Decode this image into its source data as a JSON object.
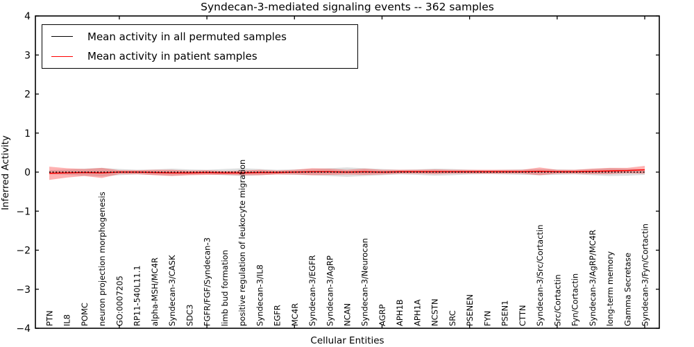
{
  "title": "Syndecan-3-mediated signaling events -- 362 samples",
  "axes": {
    "ylabel": "Inferred Activity",
    "xlabel": "Cellular Entities",
    "ytick_labels": [
      "4",
      "3",
      "2",
      "1",
      "0",
      "−1",
      "−2",
      "−3",
      "−4"
    ],
    "ylim": [
      -4,
      4
    ]
  },
  "legend": {
    "entries": [
      {
        "label": "Mean activity in all permuted samples",
        "color": "#000000"
      },
      {
        "label": "Mean activity in patient samples",
        "color": "#ff0000"
      }
    ]
  },
  "chart_data": {
    "type": "line",
    "title": "Syndecan-3-mediated signaling events -- 362 samples",
    "xlabel": "Cellular Entities",
    "ylabel": "Inferred Activity",
    "ylim": [
      -4,
      4
    ],
    "yticks": [
      4,
      3,
      2,
      1,
      0,
      -1,
      -2,
      -3,
      -4
    ],
    "grid": false,
    "legend_position": "upper left",
    "categories": [
      "PTN",
      "IL8",
      "POMC",
      "neuron projection morphogenesis",
      "GO:0007205",
      "RP11-540L11.1",
      "alpha-MSH/MC4R",
      "Syndecan-3/CASK",
      "SDC3",
      "FGFR/FGF/Syndecan-3",
      "limb bud formation",
      "positive regulation of leukocyte migration",
      "Syndecan-3/IL8",
      "EGFR",
      "MC4R",
      "Syndecan-3/EGFR",
      "Syndecan-3/AgRP",
      "NCAN",
      "Syndecan-3/Neurocan",
      "AGRP",
      "APH1B",
      "APH1A",
      "NCSTN",
      "SRC",
      "PSENEN",
      "FYN",
      "PSEN1",
      "CTTN",
      "Syndecan-3/Src/Cortactin",
      "Src/Cortactin",
      "Fyn/Cortactin",
      "Syndecan-3/AgRP/MC4R",
      "long-term memory",
      "Gamma Secretase",
      "Syndecan-3/Fyn/Cortactin"
    ],
    "series": [
      {
        "name": "Mean activity in all permuted samples",
        "color": "#000000",
        "line_style": "dashed",
        "band_color": "#000000",
        "band_opacity": 0.13,
        "values": [
          0,
          0,
          0,
          0,
          0,
          0,
          0,
          0,
          0,
          0,
          0,
          0,
          0,
          0,
          0,
          0,
          0,
          0,
          0,
          0,
          0,
          0,
          0,
          0,
          0,
          0,
          0,
          0,
          0,
          0,
          0,
          0,
          0,
          0,
          0
        ],
        "band": [
          0.05,
          0.07,
          0.09,
          0.11,
          0.08,
          0.06,
          0.07,
          0.09,
          0.07,
          0.06,
          0.08,
          0.1,
          0.08,
          0.06,
          0.07,
          0.08,
          0.1,
          0.12,
          0.1,
          0.08,
          0.06,
          0.07,
          0.09,
          0.08,
          0.06,
          0.05,
          0.06,
          0.07,
          0.08,
          0.07,
          0.06,
          0.08,
          0.1,
          0.09,
          0.07
        ]
      },
      {
        "name": "Mean activity in patient samples",
        "color": "#ff0000",
        "line_style": "solid",
        "band_color": "#ff0000",
        "band_opacity": 0.3,
        "values": [
          -0.03,
          -0.02,
          -0.01,
          -0.02,
          0,
          0,
          -0.01,
          -0.02,
          -0.02,
          -0.01,
          -0.02,
          -0.02,
          -0.01,
          -0.01,
          0,
          0.01,
          0.01,
          0,
          0.01,
          0,
          0.01,
          0.01,
          0.01,
          0.01,
          0.01,
          0.01,
          0.01,
          0.01,
          0.02,
          0.01,
          0.01,
          0.02,
          0.03,
          0.04,
          0.06
        ],
        "band": [
          0.17,
          0.12,
          0.09,
          0.13,
          0.05,
          0.05,
          0.07,
          0.08,
          0.06,
          0.06,
          0.05,
          0.06,
          0.07,
          0.05,
          0.06,
          0.09,
          0.08,
          0.06,
          0.08,
          0.06,
          0.05,
          0.05,
          0.06,
          0.05,
          0.05,
          0.05,
          0.05,
          0.05,
          0.1,
          0.05,
          0.05,
          0.07,
          0.08,
          0.07,
          0.1
        ]
      }
    ]
  }
}
